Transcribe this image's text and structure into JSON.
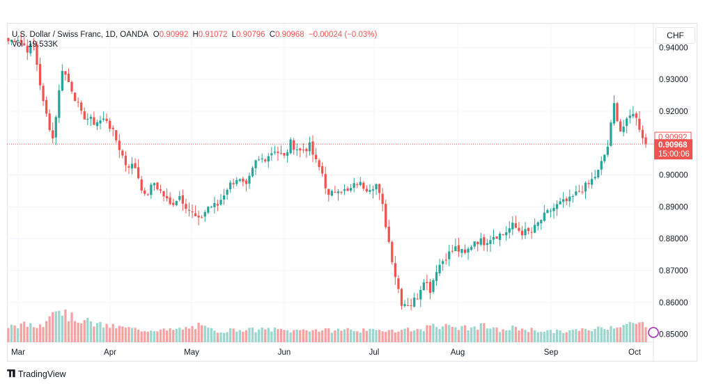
{
  "legend": {
    "symbol": "U.S. Dollar / Swiss Franc, 1D, OANDA",
    "o_label": "O",
    "o_value": "0.90992",
    "h_label": "H",
    "h_value": "0.91072",
    "l_label": "L",
    "l_value": "0.90796",
    "c_label": "C",
    "c_value": "0.90968",
    "change": "−0.00024 (−0.03%)",
    "vol_label": "Vol",
    "vol_value": "19.533K"
  },
  "currency_button": "CHF",
  "footer": {
    "brand": "TradingView",
    "icon": "tradingview-logo-icon"
  },
  "colors": {
    "up": "#26a69a",
    "down": "#ef5350",
    "up_vol": "#9bd6cf",
    "down_vol": "#f5a3a2"
  },
  "chart_data": {
    "type": "candlestick",
    "ylim": [
      0.8475,
      0.9475
    ],
    "y_ticks": [
      "0.94000",
      "0.93000",
      "0.92000",
      "0.91000",
      "0.90000",
      "0.89000",
      "0.88000",
      "0.87000",
      "0.86000",
      "0.85000"
    ],
    "x_ticks": [
      "Mar",
      "Apr",
      "May",
      "Jun",
      "Jul",
      "Aug",
      "Sep",
      "Oct"
    ],
    "price_labels": {
      "open": "0.90992",
      "last": "0.90968",
      "countdown": "15:00:06"
    },
    "last_price": 0.90968,
    "open_price": 0.90992,
    "grid": true,
    "anchors": [
      [
        0,
        0.942
      ],
      [
        3,
        0.943
      ],
      [
        6,
        0.9395
      ],
      [
        8,
        0.941
      ],
      [
        11,
        0.9225
      ],
      [
        14,
        0.9115
      ],
      [
        17,
        0.9335
      ],
      [
        20,
        0.927
      ],
      [
        23,
        0.919
      ],
      [
        27,
        0.9165
      ],
      [
        31,
        0.9175
      ],
      [
        34,
        0.911
      ],
      [
        37,
        0.9035
      ],
      [
        40,
        0.9025
      ],
      [
        43,
        0.893
      ],
      [
        46,
        0.8975
      ],
      [
        49,
        0.8935
      ],
      [
        51,
        0.8905
      ],
      [
        54,
        0.8935
      ],
      [
        57,
        0.889
      ],
      [
        60,
        0.8855
      ],
      [
        63,
        0.89
      ],
      [
        66,
        0.8905
      ],
      [
        69,
        0.896
      ],
      [
        72,
        0.899
      ],
      [
        75,
        0.896
      ],
      [
        78,
        0.904
      ],
      [
        81,
        0.9055
      ],
      [
        84,
        0.908
      ],
      [
        87,
        0.9055
      ],
      [
        89,
        0.91
      ],
      [
        92,
        0.9075
      ],
      [
        95,
        0.909
      ],
      [
        97,
        0.904
      ],
      [
        99,
        0.9005
      ],
      [
        101,
        0.893
      ],
      [
        104,
        0.896
      ],
      [
        107,
        0.8945
      ],
      [
        110,
        0.8975
      ],
      [
        113,
        0.896
      ],
      [
        116,
        0.897
      ],
      [
        118,
        0.89
      ],
      [
        120,
        0.879
      ],
      [
        122,
        0.8685
      ],
      [
        124,
        0.86
      ],
      [
        127,
        0.8595
      ],
      [
        129,
        0.862
      ],
      [
        131,
        0.8675
      ],
      [
        133,
        0.864
      ],
      [
        135,
        0.8705
      ],
      [
        138,
        0.8745
      ],
      [
        141,
        0.877
      ],
      [
        144,
        0.875
      ],
      [
        147,
        0.8795
      ],
      [
        150,
        0.879
      ],
      [
        153,
        0.881
      ],
      [
        156,
        0.8815
      ],
      [
        159,
        0.884
      ],
      [
        162,
        0.882
      ],
      [
        165,
        0.882
      ],
      [
        168,
        0.886
      ],
      [
        171,
        0.889
      ],
      [
        174,
        0.891
      ],
      [
        177,
        0.892
      ],
      [
        180,
        0.895
      ],
      [
        183,
        0.897
      ],
      [
        186,
        0.901
      ],
      [
        189,
        0.909
      ],
      [
        191,
        0.922
      ],
      [
        193,
        0.914
      ],
      [
        195,
        0.9165
      ],
      [
        197,
        0.92
      ],
      [
        199,
        0.915
      ],
      [
        201,
        0.9097
      ]
    ],
    "volume_anchors": [
      [
        0,
        0.36
      ],
      [
        3,
        0.4
      ],
      [
        6,
        0.4
      ],
      [
        8,
        0.36
      ],
      [
        11,
        0.42
      ],
      [
        13,
        0.75
      ],
      [
        15,
        0.8
      ],
      [
        17,
        0.72
      ],
      [
        19,
        0.6
      ],
      [
        21,
        0.55
      ],
      [
        23,
        0.52
      ],
      [
        25,
        0.48
      ],
      [
        28,
        0.4
      ],
      [
        31,
        0.38
      ],
      [
        34,
        0.35
      ],
      [
        37,
        0.33
      ],
      [
        40,
        0.3
      ],
      [
        44,
        0.28
      ],
      [
        47,
        0.3
      ],
      [
        50,
        0.27
      ],
      [
        54,
        0.3
      ],
      [
        57,
        0.33
      ],
      [
        60,
        0.38
      ],
      [
        63,
        0.3
      ],
      [
        66,
        0.26
      ],
      [
        70,
        0.28
      ],
      [
        74,
        0.3
      ],
      [
        78,
        0.28
      ],
      [
        82,
        0.3
      ],
      [
        86,
        0.28
      ],
      [
        90,
        0.26
      ],
      [
        94,
        0.3
      ],
      [
        98,
        0.28
      ],
      [
        102,
        0.27
      ],
      [
        106,
        0.3
      ],
      [
        110,
        0.28
      ],
      [
        114,
        0.26
      ],
      [
        118,
        0.27
      ],
      [
        120,
        0.3
      ],
      [
        122,
        0.28
      ],
      [
        124,
        0.27
      ],
      [
        126,
        0.32
      ],
      [
        128,
        0.3
      ],
      [
        130,
        0.26
      ],
      [
        132,
        0.35
      ],
      [
        134,
        0.44
      ],
      [
        136,
        0.38
      ],
      [
        138,
        0.36
      ],
      [
        141,
        0.35
      ],
      [
        144,
        0.33
      ],
      [
        147,
        0.34
      ],
      [
        150,
        0.38
      ],
      [
        153,
        0.3
      ],
      [
        156,
        0.27
      ],
      [
        159,
        0.33
      ],
      [
        162,
        0.31
      ],
      [
        166,
        0.28
      ],
      [
        170,
        0.26
      ],
      [
        174,
        0.24
      ],
      [
        178,
        0.27
      ],
      [
        182,
        0.28
      ],
      [
        186,
        0.32
      ],
      [
        190,
        0.37
      ],
      [
        194,
        0.4
      ],
      [
        198,
        0.43
      ],
      [
        201,
        0.42
      ]
    ]
  }
}
